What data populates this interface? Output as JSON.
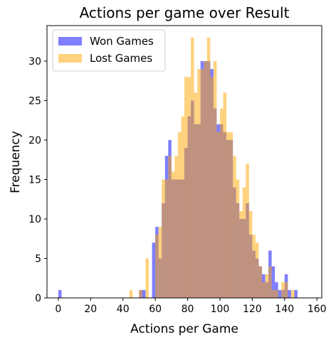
{
  "chart_data": {
    "type": "bar",
    "title": "Actions per game over Result",
    "xlabel": "Actions per Game",
    "ylabel": "Frequency",
    "xlim": [
      -7,
      163
    ],
    "ylim": [
      0,
      34.5
    ],
    "xticks": [
      0,
      20,
      40,
      60,
      80,
      100,
      120,
      140,
      160
    ],
    "yticks": [
      0,
      5,
      10,
      15,
      20,
      25,
      30
    ],
    "legend_position": "top-left",
    "grid": false,
    "bin_width": 2,
    "series": [
      {
        "name": "Won Games",
        "color": "#0000ff",
        "opacity": 0.5,
        "bins": [
          [
            0,
            1
          ],
          [
            50,
            1
          ],
          [
            52,
            1
          ],
          [
            58,
            7
          ],
          [
            60,
            9
          ],
          [
            62,
            5
          ],
          [
            64,
            12
          ],
          [
            66,
            18
          ],
          [
            68,
            20
          ],
          [
            70,
            15
          ],
          [
            72,
            15
          ],
          [
            74,
            15
          ],
          [
            76,
            15
          ],
          [
            78,
            19
          ],
          [
            80,
            23
          ],
          [
            82,
            25
          ],
          [
            84,
            22
          ],
          [
            86,
            22
          ],
          [
            88,
            30
          ],
          [
            90,
            30
          ],
          [
            92,
            30
          ],
          [
            94,
            29
          ],
          [
            96,
            24
          ],
          [
            98,
            22
          ],
          [
            100,
            22
          ],
          [
            102,
            21
          ],
          [
            104,
            20
          ],
          [
            106,
            20
          ],
          [
            108,
            14
          ],
          [
            110,
            12
          ],
          [
            112,
            10
          ],
          [
            114,
            10
          ],
          [
            116,
            12
          ],
          [
            118,
            8
          ],
          [
            120,
            6
          ],
          [
            122,
            5
          ],
          [
            124,
            4
          ],
          [
            126,
            3
          ],
          [
            128,
            2
          ],
          [
            130,
            6
          ],
          [
            132,
            4
          ],
          [
            134,
            2
          ],
          [
            136,
            1
          ],
          [
            138,
            1
          ],
          [
            140,
            3
          ],
          [
            142,
            1
          ],
          [
            146,
            1
          ]
        ]
      },
      {
        "name": "Lost Games",
        "color": "#ffa500",
        "opacity": 0.5,
        "bins": [
          [
            44,
            1
          ],
          [
            50,
            1
          ],
          [
            54,
            5
          ],
          [
            60,
            8
          ],
          [
            62,
            9
          ],
          [
            64,
            15
          ],
          [
            66,
            15
          ],
          [
            68,
            18
          ],
          [
            70,
            16
          ],
          [
            72,
            18
          ],
          [
            74,
            21
          ],
          [
            76,
            23
          ],
          [
            78,
            28
          ],
          [
            80,
            28
          ],
          [
            82,
            33
          ],
          [
            84,
            26
          ],
          [
            86,
            29
          ],
          [
            88,
            29
          ],
          [
            90,
            30
          ],
          [
            92,
            33
          ],
          [
            94,
            28
          ],
          [
            96,
            30
          ],
          [
            98,
            21
          ],
          [
            100,
            24
          ],
          [
            102,
            26
          ],
          [
            104,
            21
          ],
          [
            106,
            21
          ],
          [
            108,
            18
          ],
          [
            110,
            15
          ],
          [
            112,
            11
          ],
          [
            114,
            14
          ],
          [
            116,
            17
          ],
          [
            118,
            11
          ],
          [
            120,
            8
          ],
          [
            122,
            7
          ],
          [
            124,
            4
          ],
          [
            126,
            2
          ],
          [
            128,
            3
          ],
          [
            130,
            4
          ],
          [
            132,
            1
          ],
          [
            134,
            1
          ],
          [
            138,
            2
          ],
          [
            140,
            2
          ],
          [
            144,
            1
          ]
        ]
      }
    ]
  }
}
